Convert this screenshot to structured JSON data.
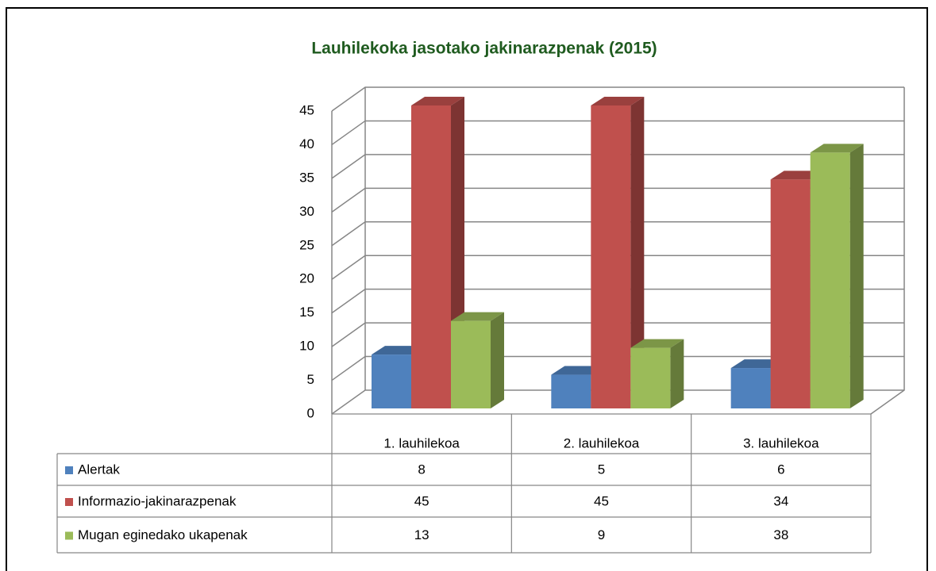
{
  "chart_data": {
    "type": "bar3d",
    "title": "Lauhilekoka jasotako jakinarazpenak (2015)",
    "categories": [
      "1. lauhilekoa",
      "2. lauhilekoa",
      "3. lauhilekoa"
    ],
    "series": [
      {
        "name": "Alertak",
        "color": "#4f81bd",
        "values": [
          8,
          5,
          6
        ]
      },
      {
        "name": "Informazio-jakinarazpenak",
        "color": "#c0504d",
        "values": [
          45,
          45,
          34
        ]
      },
      {
        "name": "Mugan eginedako ukapenak",
        "color": "#9bbb59",
        "values": [
          13,
          9,
          38
        ]
      }
    ],
    "ylim": [
      0,
      45
    ],
    "yticks": [
      0,
      5,
      10,
      15,
      20,
      25,
      30,
      35,
      40,
      45
    ],
    "grid": true,
    "data_table": true
  }
}
